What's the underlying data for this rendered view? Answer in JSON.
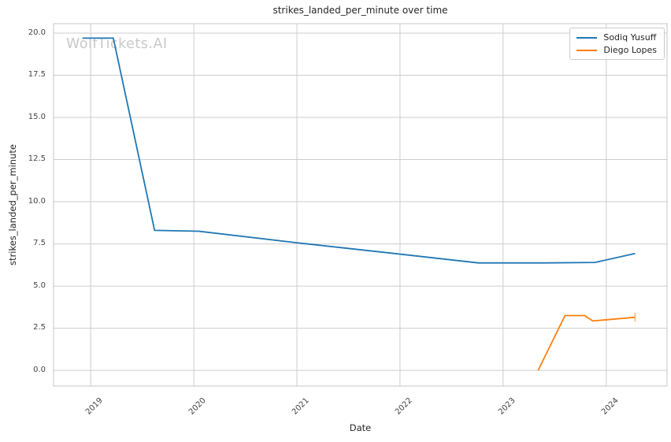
{
  "watermark": "WolfTickets.AI",
  "chart_data": {
    "type": "line",
    "title": "strikes_landed_per_minute over time",
    "xlabel": "Date",
    "ylabel": "strikes_landed_per_minute",
    "x_unit": "decimal_year",
    "xlim": [
      2018.64,
      2024.59
    ],
    "ylim": [
      -0.93,
      20.56
    ],
    "grid": true,
    "legend_position": "upper right",
    "x_tick_values": [
      2019,
      2020,
      2021,
      2022,
      2023,
      2024
    ],
    "x_tick_labels": [
      "2019",
      "2020",
      "2021",
      "2022",
      "2023",
      "2024"
    ],
    "y_tick_values": [
      0.0,
      2.5,
      5.0,
      7.5,
      10.0,
      12.5,
      15.0,
      17.5,
      20.0
    ],
    "y_tick_labels": [
      "0.0",
      "2.5",
      "5.0",
      "7.5",
      "10.0",
      "12.5",
      "15.0",
      "17.5",
      "20.0"
    ],
    "series": [
      {
        "name": "Sodiq Yusuff",
        "color": "#1f77b4",
        "x": [
          2018.92,
          2019.22,
          2019.62,
          2020.05,
          2021.0,
          2021.95,
          2022.76,
          2023.4,
          2023.89,
          2024.28
        ],
        "y": [
          19.7,
          19.7,
          8.3,
          8.25,
          7.57,
          6.93,
          6.37,
          6.37,
          6.4,
          6.93
        ]
      },
      {
        "name": "Diego Lopes",
        "color": "#ff7f0e",
        "x": [
          2023.34,
          2023.6,
          2023.79,
          2023.87,
          2024.28
        ],
        "y": [
          0.0,
          3.25,
          3.25,
          2.93,
          3.15
        ],
        "end_cap": {
          "x": 2024.28,
          "y_low": 2.89,
          "y_high": 3.41
        }
      }
    ]
  }
}
